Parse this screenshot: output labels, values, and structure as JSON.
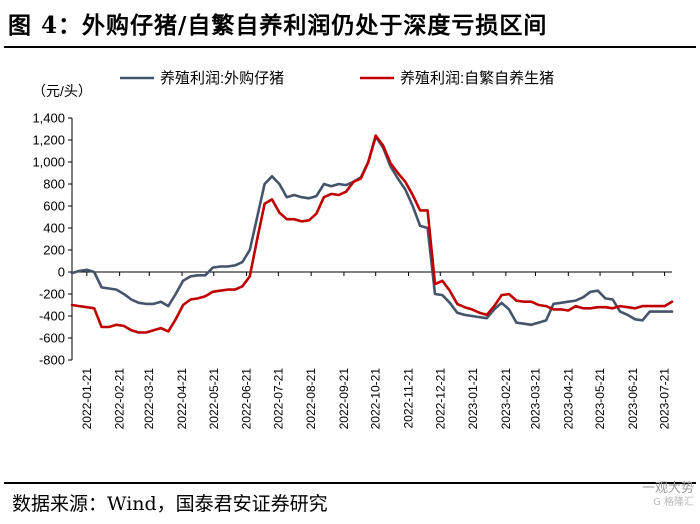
{
  "header": {
    "title": "图 4：外购仔猪/自繁自养利润仍处于深度亏损区间"
  },
  "footer": {
    "source": "数据来源：Wind，国泰君安证券研究"
  },
  "watermark": {
    "text": "一观大势",
    "sub": "G 格隆汇"
  },
  "chart_data": {
    "type": "line",
    "unit_label": "（元/头）",
    "ylim": [
      -800,
      1400
    ],
    "y_ticks": [
      "1,400",
      "1,200",
      "1,000",
      "800",
      "600",
      "400",
      "200",
      "0",
      "-200",
      "-400",
      "-600",
      "-800"
    ],
    "x_tick_labels": [
      "2022-01-21",
      "2022-02-21",
      "2022-03-21",
      "2022-04-21",
      "2022-05-21",
      "2022-06-21",
      "2022-07-21",
      "2022-08-21",
      "2022-09-21",
      "2022-10-21",
      "2022-11-21",
      "2022-12-21",
      "2023-01-21",
      "2023-02-21",
      "2023-03-21",
      "2023-04-21",
      "2023-05-21",
      "2023-06-21",
      "2023-07-21"
    ],
    "legend_position": "top",
    "grid": false,
    "x": [
      "2022-01-07",
      "2022-01-14",
      "2022-01-21",
      "2022-01-28",
      "2022-02-04",
      "2022-02-11",
      "2022-02-18",
      "2022-02-25",
      "2022-03-04",
      "2022-03-11",
      "2022-03-18",
      "2022-03-25",
      "2022-04-01",
      "2022-04-08",
      "2022-04-15",
      "2022-04-22",
      "2022-04-29",
      "2022-05-06",
      "2022-05-13",
      "2022-05-20",
      "2022-05-27",
      "2022-06-03",
      "2022-06-10",
      "2022-06-17",
      "2022-06-24",
      "2022-07-01",
      "2022-07-08",
      "2022-07-15",
      "2022-07-22",
      "2022-07-29",
      "2022-08-05",
      "2022-08-12",
      "2022-08-19",
      "2022-08-26",
      "2022-09-02",
      "2022-09-09",
      "2022-09-16",
      "2022-09-23",
      "2022-09-30",
      "2022-10-07",
      "2022-10-14",
      "2022-10-21",
      "2022-10-28",
      "2022-11-04",
      "2022-11-11",
      "2022-11-18",
      "2022-11-25",
      "2022-12-02",
      "2022-12-09",
      "2022-12-16",
      "2022-12-23",
      "2022-12-30",
      "2023-01-06",
      "2023-01-13",
      "2023-01-20",
      "2023-01-27",
      "2023-02-03",
      "2023-02-10",
      "2023-02-17",
      "2023-02-24",
      "2023-03-03",
      "2023-03-10",
      "2023-03-17",
      "2023-03-24",
      "2023-03-31",
      "2023-04-07",
      "2023-04-14",
      "2023-04-21",
      "2023-04-28",
      "2023-05-05",
      "2023-05-12",
      "2023-05-19",
      "2023-05-26",
      "2023-06-02",
      "2023-06-09",
      "2023-06-16",
      "2023-06-23",
      "2023-06-30",
      "2023-07-07",
      "2023-07-14",
      "2023-07-21",
      "2023-07-28"
    ],
    "series": [
      {
        "name": "养殖利润:外购仔猪",
        "color": "#44546a",
        "values": [
          -10,
          10,
          20,
          0,
          -140,
          -150,
          -160,
          -200,
          -250,
          -280,
          -290,
          -290,
          -270,
          -310,
          -200,
          -80,
          -40,
          -30,
          -30,
          40,
          50,
          50,
          60,
          90,
          200,
          500,
          800,
          870,
          800,
          680,
          700,
          680,
          670,
          690,
          800,
          780,
          800,
          790,
          820,
          860,
          1000,
          1230,
          1130,
          960,
          850,
          750,
          600,
          420,
          400,
          -200,
          -210,
          -280,
          -370,
          -390,
          -400,
          -410,
          -420,
          -340,
          -280,
          -340,
          -460,
          -470,
          -480,
          -460,
          -440,
          -290,
          -280,
          -270,
          -260,
          -230,
          -180,
          -170,
          -240,
          -250,
          -360,
          -390,
          -430,
          -440,
          -360,
          -360,
          -360,
          -360
        ]
      },
      {
        "name": "养殖利润:自繁自养生猪",
        "color": "#c00000",
        "values": [
          -300,
          -310,
          -320,
          -330,
          -500,
          -500,
          -480,
          -490,
          -530,
          -550,
          -550,
          -530,
          -510,
          -540,
          -430,
          -300,
          -250,
          -240,
          -220,
          -180,
          -170,
          -160,
          -160,
          -130,
          -40,
          300,
          620,
          660,
          540,
          480,
          480,
          460,
          470,
          530,
          680,
          710,
          700,
          730,
          820,
          850,
          1000,
          1240,
          1150,
          990,
          900,
          820,
          700,
          560,
          560,
          -110,
          -80,
          -170,
          -290,
          -320,
          -340,
          -370,
          -390,
          -310,
          -210,
          -200,
          -260,
          -270,
          -270,
          -300,
          -310,
          -340,
          -340,
          -350,
          -310,
          -330,
          -330,
          -320,
          -320,
          -330,
          -310,
          -320,
          -330,
          -310,
          -310,
          -310,
          -310,
          -270
        ]
      }
    ]
  }
}
